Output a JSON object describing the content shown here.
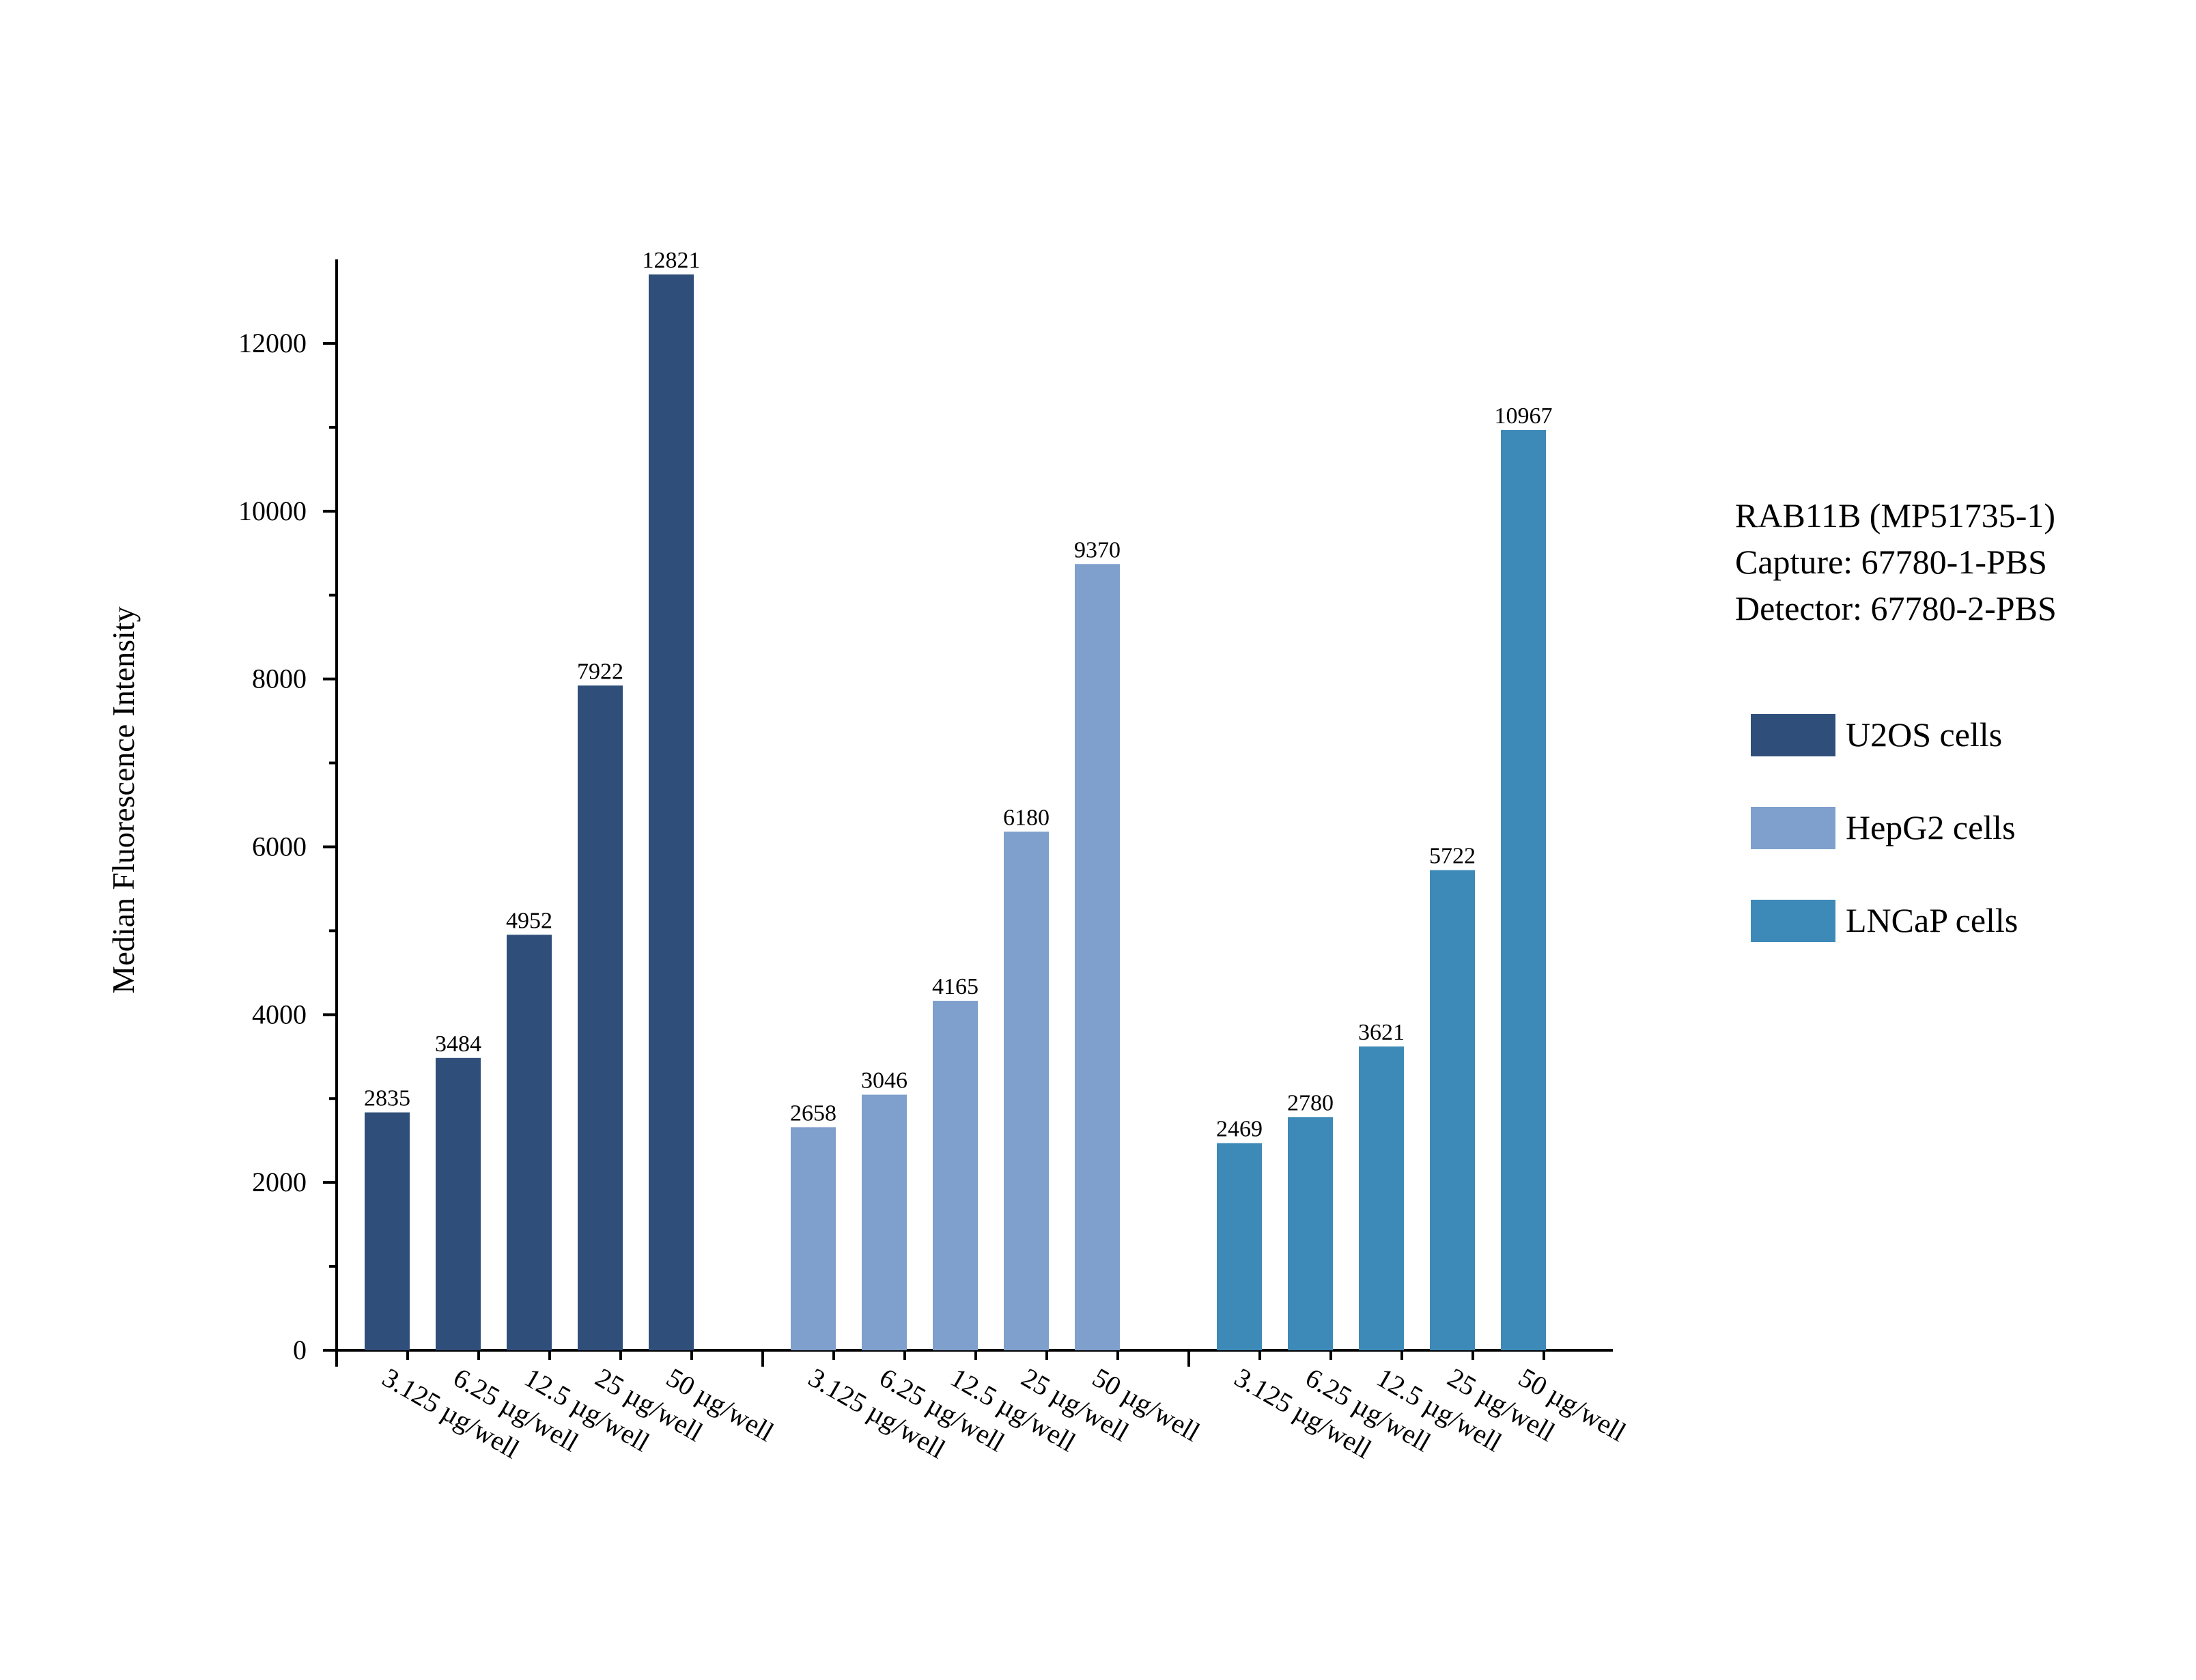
{
  "chart_data": {
    "type": "bar",
    "title": "",
    "xlabel": "",
    "ylabel": "Median Fluorescence Intensity",
    "ylim": [
      0,
      13000
    ],
    "y_ticks": [
      0,
      2000,
      4000,
      6000,
      8000,
      10000,
      12000
    ],
    "grid": false,
    "legend_position": "right",
    "annotation": [
      "RAB11B (MP51735-1)",
      "Capture: 67780-1-PBS",
      "Detector: 67780-2-PBS"
    ],
    "categories": [
      "3.125 µg/well",
      "6.25 µg/well",
      "12.5 µg/well",
      "25 µg/well",
      "50 µg/well"
    ],
    "series": [
      {
        "name": "U2OS cells",
        "color": "#2f4f7a",
        "values": [
          2835,
          3484,
          4952,
          7922,
          12821
        ]
      },
      {
        "name": "HepG2 cells",
        "color": "#7f9fcc",
        "values": [
          2658,
          3046,
          4165,
          6180,
          9370
        ]
      },
      {
        "name": "LNCaP cells",
        "color": "#3d8ab8",
        "values": [
          2469,
          2780,
          3621,
          5722,
          10967
        ]
      }
    ]
  }
}
